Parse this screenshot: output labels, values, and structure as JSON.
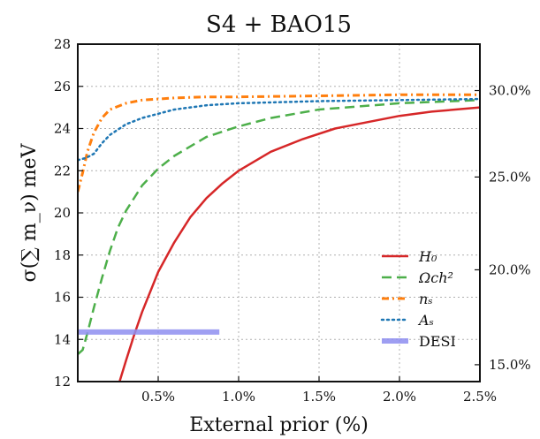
{
  "chart_data": {
    "type": "line",
    "title": "S4  +  BAO15",
    "xlabel": "External prior (%)",
    "ylabel": "σ(∑ m_ν) meV",
    "xlim": [
      0.0,
      2.5
    ],
    "ylim": [
      12,
      28
    ],
    "x_ticks": [
      0.5,
      1.0,
      1.5,
      2.0,
      2.5
    ],
    "x_tick_labels": [
      "0.5%",
      "1.0%",
      "1.5%",
      "2.0%",
      "2.5%"
    ],
    "y_ticks": [
      12,
      14,
      16,
      18,
      20,
      22,
      24,
      26,
      28
    ],
    "y_tick_labels": [
      "12",
      "14",
      "16",
      "18",
      "20",
      "22",
      "24",
      "26",
      "28"
    ],
    "right_ticks": [
      {
        "label": "15.0%",
        "y": 12.8
      },
      {
        "label": "20.0%",
        "y": 17.3
      },
      {
        "label": "25.0%",
        "y": 21.7
      },
      {
        "label": "30.0%",
        "y": 25.8
      }
    ],
    "grid": true,
    "legend_position": "lower-right",
    "series": [
      {
        "name": "H₀",
        "color": "#d62728",
        "style": "solid",
        "x": [
          0.26,
          0.3,
          0.35,
          0.4,
          0.5,
          0.6,
          0.7,
          0.8,
          0.9,
          1.0,
          1.2,
          1.4,
          1.6,
          1.8,
          2.0,
          2.2,
          2.5
        ],
        "y": [
          12.0,
          13.0,
          14.2,
          15.3,
          17.2,
          18.6,
          19.8,
          20.7,
          21.4,
          22.0,
          22.9,
          23.5,
          24.0,
          24.3,
          24.6,
          24.8,
          25.0
        ]
      },
      {
        "name": "Ωch²",
        "color": "#4daf4a",
        "style": "dashed",
        "x": [
          0.0,
          0.03,
          0.06,
          0.1,
          0.15,
          0.2,
          0.25,
          0.3,
          0.4,
          0.5,
          0.6,
          0.8,
          1.0,
          1.2,
          1.5,
          2.0,
          2.5
        ],
        "y": [
          13.3,
          13.5,
          14.3,
          15.5,
          16.9,
          18.2,
          19.3,
          20.1,
          21.3,
          22.1,
          22.7,
          23.6,
          24.1,
          24.5,
          24.9,
          25.2,
          25.35
        ]
      },
      {
        "name": "nₛ",
        "color": "#ff7f0e",
        "style": "dashdot",
        "x": [
          0.0,
          0.03,
          0.06,
          0.1,
          0.15,
          0.2,
          0.3,
          0.4,
          0.6,
          0.8,
          1.0,
          1.5,
          2.0,
          2.5
        ],
        "y": [
          21.0,
          21.9,
          22.9,
          23.8,
          24.5,
          24.9,
          25.2,
          25.35,
          25.45,
          25.5,
          25.5,
          25.55,
          25.6,
          25.6
        ]
      },
      {
        "name": "Aₛ",
        "color": "#1f77b4",
        "style": "dotted",
        "x": [
          0.0,
          0.05,
          0.1,
          0.15,
          0.2,
          0.3,
          0.4,
          0.5,
          0.6,
          0.8,
          1.0,
          1.5,
          2.0,
          2.5
        ],
        "y": [
          22.5,
          22.6,
          22.8,
          23.3,
          23.7,
          24.2,
          24.5,
          24.7,
          24.9,
          25.1,
          25.2,
          25.3,
          25.35,
          25.4
        ]
      },
      {
        "name": "DESI",
        "color": "#8e8ef0",
        "style": "band",
        "x": [
          0.0,
          0.88
        ],
        "y": [
          14.35,
          14.35
        ]
      }
    ]
  },
  "legend": {
    "entries": [
      {
        "series": 0,
        "label": "H₀"
      },
      {
        "series": 1,
        "label": "Ωch²"
      },
      {
        "series": 2,
        "label": "nₛ"
      },
      {
        "series": 3,
        "label": "Aₛ"
      },
      {
        "series": 4,
        "label": "DESI"
      }
    ]
  }
}
